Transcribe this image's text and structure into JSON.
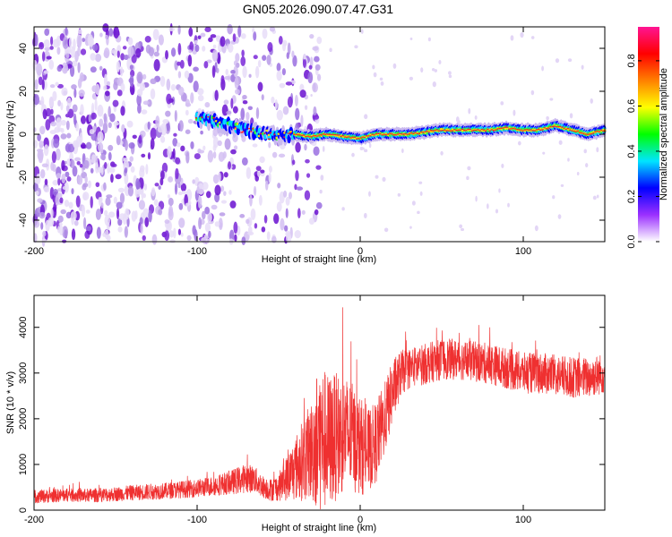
{
  "title": "GN05.2026.090.07.47.G31",
  "colors": {
    "snr_line": "#ef3030",
    "spectrogram_low": "#b89be8",
    "spectrogram_mid": "#7a28d8",
    "axis": "#000000",
    "background": "#ffffff"
  },
  "chart_data": [
    {
      "type": "heatmap",
      "title": "GN05.2026.090.07.47.G31",
      "xlabel": "Height of straight line (km)",
      "ylabel": "Frequency (Hz)",
      "xlim": [
        -200,
        150
      ],
      "ylim": [
        -50,
        50
      ],
      "xticks": [
        -200,
        -100,
        0,
        100
      ],
      "yticks": [
        -40,
        -20,
        0,
        20,
        40
      ],
      "description_values": {
        "noise_region_x": [
          -200,
          -35
        ],
        "signal_region_x": [
          -35,
          150
        ],
        "signal_frequency_track": [
          [
            -100,
            7
          ],
          [
            -90,
            6
          ],
          [
            -80,
            4
          ],
          [
            -70,
            2
          ],
          [
            -60,
            0
          ],
          [
            -50,
            -1
          ],
          [
            -40,
            0
          ],
          [
            -30,
            -1
          ],
          [
            -20,
            0
          ],
          [
            -10,
            -1
          ],
          [
            0,
            -2
          ],
          [
            10,
            0
          ],
          [
            20,
            0
          ],
          [
            30,
            0
          ],
          [
            40,
            1
          ],
          [
            50,
            2
          ],
          [
            60,
            2
          ],
          [
            70,
            2
          ],
          [
            80,
            2
          ],
          [
            90,
            3
          ],
          [
            100,
            2
          ],
          [
            110,
            2
          ],
          [
            120,
            4
          ],
          [
            130,
            2
          ],
          [
            140,
            0
          ],
          [
            150,
            2
          ]
        ]
      },
      "colorbar": {
        "label": "Normalized spectral amplitude",
        "range": [
          0,
          0.95
        ],
        "ticks": [
          0,
          0.2,
          0.4,
          0.6,
          0.8
        ],
        "tick_labels": [
          "0.0",
          "0.2",
          "0.4",
          "0.6",
          "0.8"
        ],
        "colors": [
          "#ffffff",
          "#9b30ff",
          "#0000ff",
          "#00e5ff",
          "#00ff00",
          "#ffff00",
          "#ff8000",
          "#ff0000",
          "#ff1493"
        ]
      }
    },
    {
      "type": "line",
      "xlabel": "Height of straight line (km)",
      "ylabel": "SNR (10 * v/v)",
      "xlim": [
        -200,
        150
      ],
      "ylim": [
        0,
        4700
      ],
      "xticks": [
        -200,
        -100,
        0,
        100
      ],
      "yticks": [
        0,
        1000,
        2000,
        3000,
        4000
      ],
      "series": [
        {
          "name": "SNR",
          "x": [
            -200,
            -190,
            -180,
            -170,
            -160,
            -150,
            -140,
            -130,
            -120,
            -110,
            -100,
            -90,
            -80,
            -75,
            -70,
            -65,
            -60,
            -55,
            -50,
            -45,
            -40,
            -35,
            -30,
            -27,
            -25,
            -20,
            -15,
            -10,
            -5,
            0,
            5,
            10,
            15,
            20,
            25,
            30,
            40,
            50,
            60,
            70,
            80,
            90,
            100,
            110,
            120,
            130,
            140,
            150
          ],
          "values": [
            300,
            310,
            330,
            320,
            330,
            350,
            380,
            400,
            420,
            450,
            480,
            530,
            600,
            650,
            700,
            680,
            520,
            450,
            500,
            700,
            900,
            1100,
            1300,
            1500,
            1600,
            1500,
            1600,
            1700,
            1600,
            1400,
            1300,
            1500,
            2000,
            2600,
            3000,
            3100,
            3200,
            3300,
            3300,
            3250,
            3200,
            3100,
            3000,
            3000,
            2950,
            2900,
            2900,
            3000
          ],
          "spread": [
            150,
            150,
            150,
            150,
            160,
            160,
            170,
            180,
            180,
            190,
            200,
            220,
            260,
            300,
            320,
            300,
            250,
            250,
            300,
            500,
            700,
            900,
            1100,
            1500,
            1700,
            1500,
            1400,
            1300,
            1200,
            1100,
            900,
            900,
            800,
            700,
            500,
            450,
            450,
            450,
            450,
            450,
            450,
            450,
            450,
            450,
            450,
            450,
            450,
            450
          ]
        }
      ]
    }
  ]
}
